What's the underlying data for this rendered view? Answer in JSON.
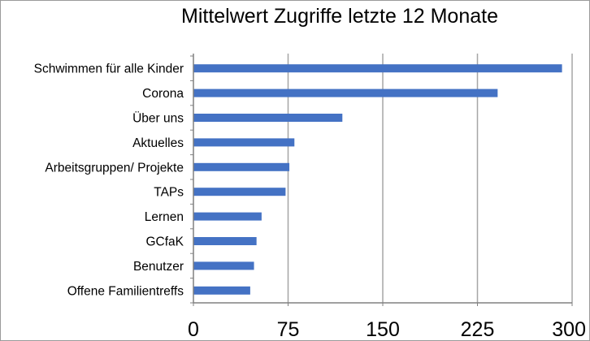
{
  "chart_data": {
    "type": "bar",
    "orientation": "horizontal",
    "title": "Mittelwert Zugriffe letzte 12 Monate",
    "categories": [
      "Schwimmen für alle Kinder",
      "Corona",
      "Über uns",
      "Aktuelles",
      "Arbeitsgruppen/ Projekte",
      "TAPs",
      "Lernen",
      "GCfaK",
      "Benutzer",
      "Offene Familientreffs"
    ],
    "values": [
      292,
      241,
      118,
      80,
      76,
      73,
      54,
      50,
      48,
      45
    ],
    "xlim": [
      0,
      300
    ],
    "xticks": [
      0,
      75,
      150,
      225,
      300
    ],
    "grid": "vertical",
    "bar_color": "#4472c4",
    "grid_color": "#a6a6a6",
    "axis_color": "#808080"
  }
}
